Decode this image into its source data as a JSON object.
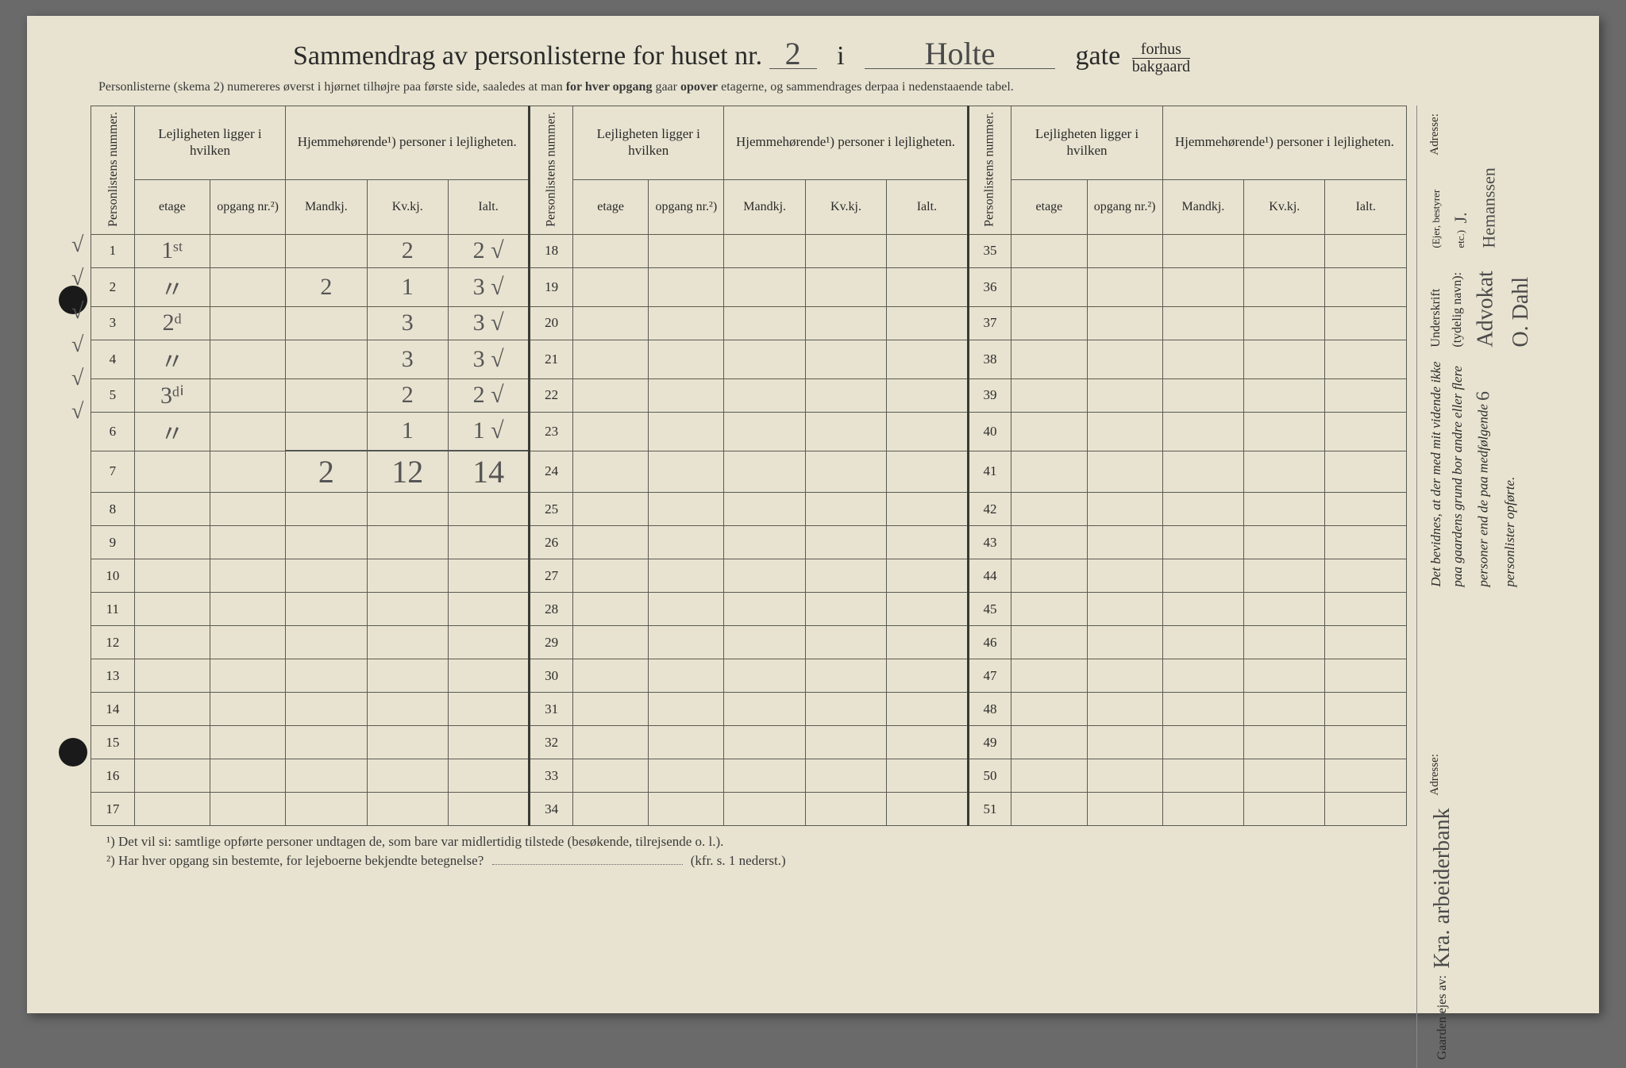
{
  "colors": {
    "paper": "#e8e3d0",
    "ink": "#2a2a2a",
    "border": "#5a5a52",
    "handwriting": "#555555",
    "punch_hole": "#1a1a1a",
    "page_bg": "#6a6a6a"
  },
  "typography": {
    "title_fontsize": 34,
    "subtitle_fontsize": 16,
    "header_fontsize": 17,
    "cell_fontsize": 18,
    "handwriting_fontsize": 30
  },
  "title": {
    "prefix": "Sammendrag av personlisterne for huset nr.",
    "house_nr": "2",
    "i": "i",
    "street": "Holte",
    "gate_label": "gate",
    "gate_top": "forhus",
    "gate_bottom": "bakgaard"
  },
  "subtitle": "Personlisterne (skema 2) numereres øverst i hjørnet tilhøjre paa første side, saaledes at man for hver opgang gaar opover etagerne, og sammendrages derpaa i nedenstaaende tabel.",
  "subtitle_bold": [
    "for hver opgang",
    "opover"
  ],
  "headers": {
    "personlistens_nummer": "Personlistens nummer.",
    "lejligheten": "Lejligheten ligger i hvilken",
    "hjemmehorende": "Hjemmehørende¹) personer i lejligheten.",
    "etage": "etage",
    "opgang": "opgang nr.²)",
    "mandkj": "Mandkj.",
    "kvkj": "Kv.kj.",
    "ialt": "Ialt."
  },
  "margin_ticks": [
    "√",
    "√",
    "√",
    "√",
    "√",
    "√"
  ],
  "table": {
    "first_block_rows": 17,
    "second_block_start": 18,
    "third_block_start": 35,
    "total_rows": 51,
    "data": [
      {
        "row": 1,
        "etage": "1ˢᵗ",
        "opgang": "",
        "mandkj": "",
        "kvkj": "2",
        "ialt": "2",
        "tick": "√"
      },
      {
        "row": 2,
        "etage": "〃",
        "opgang": "",
        "mandkj": "2",
        "kvkj": "1",
        "ialt": "3",
        "tick": "√"
      },
      {
        "row": 3,
        "etage": "2ᵈ",
        "opgang": "",
        "mandkj": "",
        "kvkj": "3",
        "ialt": "3",
        "tick": "√"
      },
      {
        "row": 4,
        "etage": "〃",
        "opgang": "",
        "mandkj": "",
        "kvkj": "3",
        "ialt": "3",
        "tick": "√"
      },
      {
        "row": 5,
        "etage": "3ᵈⁱ",
        "opgang": "",
        "mandkj": "",
        "kvkj": "2",
        "ialt": "2",
        "tick": "√"
      },
      {
        "row": 6,
        "etage": "〃",
        "opgang": "",
        "mandkj": "",
        "kvkj": "1",
        "ialt": "1",
        "tick": "√"
      },
      {
        "row": 7,
        "etage": "",
        "opgang": "",
        "mandkj": "2",
        "kvkj": "12",
        "ialt": "14",
        "tick": "",
        "sum_row": true
      }
    ]
  },
  "footnotes": {
    "f1": "¹)  Det vil si: samtlige opførte personer undtagen de, som bare var midlertidig tilstede (besøkende, tilrejsende o. l.).",
    "f2_prefix": "²)  Har hver opgang sin bestemte, for lejeboerne bekjendte betegnelse?",
    "f2_suffix": "(kfr. s. 1 nederst.)"
  },
  "side": {
    "upper": {
      "bevidnes_prefix": "Det bevidnes, at der med mit vidende ikke paa gaardens grund bor andre eller flere personer end de paa medfølgende",
      "count": "6",
      "bevidnes_suffix": "personlister opførte.",
      "underskrift_label": "Underskrift (tydelig navn):",
      "signature": "Advokat O. Dahl",
      "eier_label": "(Ejer, bestyrer etc.)",
      "signature2": "J. Hemanssen",
      "adresse_label": "Adresse:"
    },
    "lower": {
      "gaarden_label": "Gaarden ejes av:",
      "owner": "Kra. arbeiderbank",
      "adresse_label": "Adresse:"
    }
  }
}
